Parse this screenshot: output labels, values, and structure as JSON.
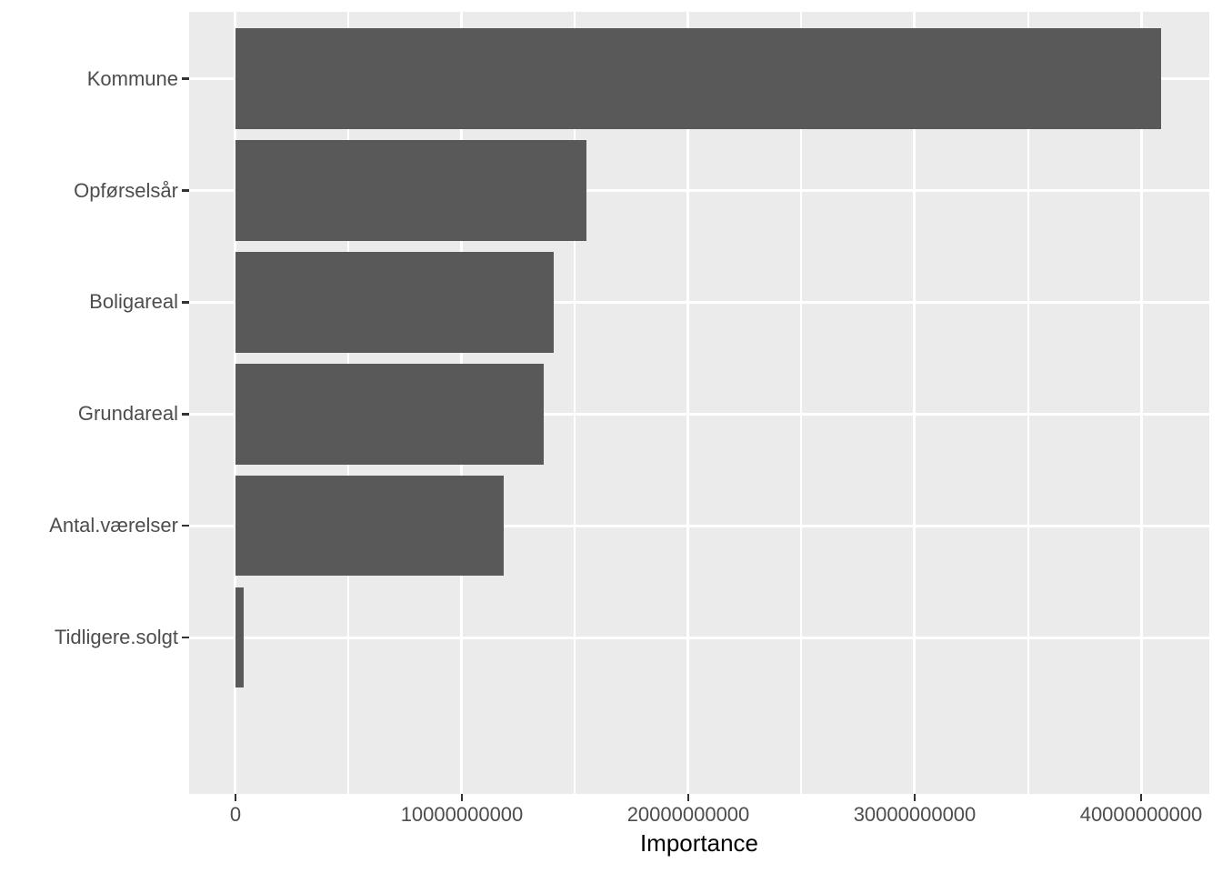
{
  "chart_data": {
    "type": "bar",
    "orientation": "horizontal",
    "title": "",
    "xlabel": "Importance",
    "ylabel": "",
    "categories": [
      "Kommune",
      "Opførselsår",
      "Boligareal",
      "Grundareal",
      "Antal.værelser",
      "Tidligere.solgt"
    ],
    "values": [
      40900000000,
      15500000000,
      14050000000,
      13600000000,
      11850000000,
      360000000
    ],
    "xlim": [
      -2048000000,
      43012000000
    ],
    "x_major_ticks": [
      0,
      10000000000,
      20000000000,
      30000000000,
      40000000000
    ],
    "x_tick_labels": [
      "0",
      "10000000000",
      "20000000000",
      "30000000000",
      "40000000000"
    ],
    "x_minor_ticks": [
      5000000000,
      15000000000,
      25000000000,
      35000000000
    ],
    "grid": "major and minor vertical, major horizontal",
    "legend": "none",
    "bar_width_fraction": 0.9,
    "category_expansion": 0.6,
    "colors": {
      "bar_fill": "#595959",
      "panel_background": "#EBEBEB",
      "grid_line": "#FFFFFF",
      "axis_text": "#4D4D4D",
      "axis_title": "#000000",
      "tick_mark": "#333333",
      "page_background": "#FFFFFF"
    }
  }
}
